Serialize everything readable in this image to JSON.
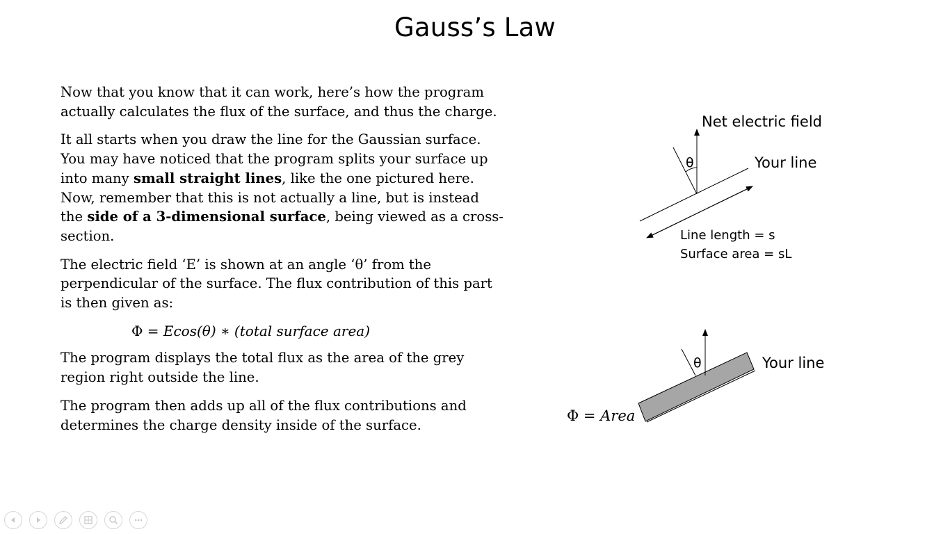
{
  "slide": {
    "title": "Gauss’s Law",
    "paragraphs": {
      "p1": "Now that you know that it can work, here’s how the program actually calculates the flux of the surface, and thus the charge.",
      "p2_a": "It all starts when you draw the line for the Gaussian surface. You may have noticed that the program splits your surface up into many ",
      "p2_bold1": "small straight lines",
      "p2_b": ", like the one pictured here. Now, remember that this is not actually a line, but is instead the ",
      "p2_bold2": "side of a 3-dimensional surface",
      "p2_c": ", being viewed as a cross-section.",
      "p3": "The electric field ‘E’ is shown at an angle ‘θ’ from the perpendicular of the surface. The flux contribution of this part is then given as:",
      "formula_lhs": "Φ = ",
      "formula_rhs": "Ecos(θ) ∗ (total surface area)",
      "p4": "The program displays the total flux as the area of the grey region right outside the line.",
      "p5": "The program then adds up all of the flux contributions and determines the charge density inside of the surface."
    },
    "diagram_top": {
      "field_label": "Net electric field",
      "line_label": "Your line",
      "theta": "θ",
      "length_label": "Line length = s",
      "area_label": "Surface area = sL"
    },
    "diagram_bottom": {
      "line_label": "Your line",
      "theta": "θ",
      "phi_label": "Φ = ",
      "area_word": "Area"
    }
  },
  "toolbar": {
    "buttons": [
      "previous-icon",
      "next-icon",
      "pen-icon",
      "slides-grid-icon",
      "zoom-icon",
      "more-icon"
    ]
  },
  "colors": {
    "grey_region": "#a6a6a6",
    "toolbar_icon": "#c8c8c8"
  }
}
